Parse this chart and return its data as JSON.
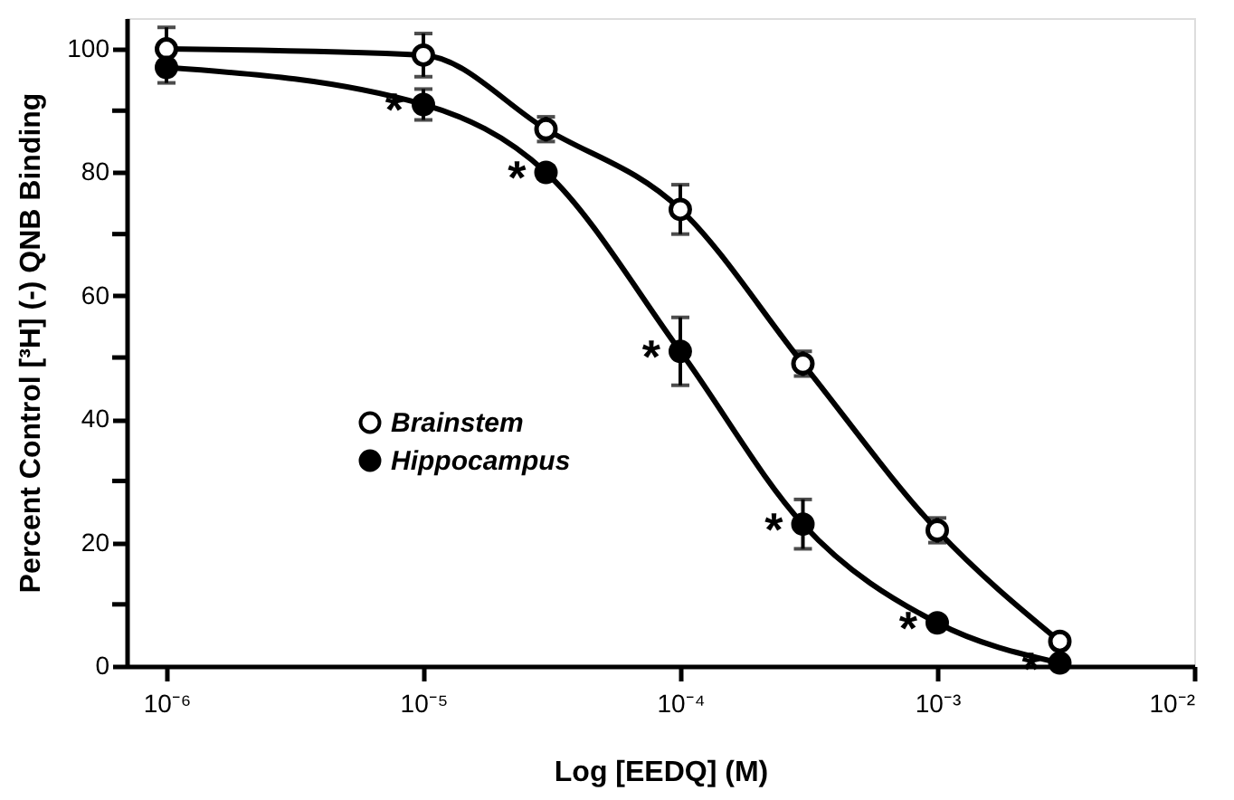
{
  "chart_data": {
    "type": "line",
    "xlabel": "Log [EEDQ] (M)",
    "ylabel": "Percent Control [³H] (-) QNB Binding",
    "x": [
      1e-06,
      1e-05,
      3e-05,
      0.0001,
      0.0003,
      0.001,
      0.003
    ],
    "series": [
      {
        "name": "Brainstem",
        "color": "#000000",
        "values": [
          100,
          99,
          87,
          74,
          49,
          22,
          4
        ],
        "errors": [
          3.5,
          3.5,
          2,
          4,
          2,
          2,
          null
        ]
      },
      {
        "name": "Hippocampus",
        "color": "#000000",
        "values": [
          97,
          91,
          80,
          51,
          23,
          7,
          0.5
        ],
        "errors": [
          2.5,
          2.5,
          1,
          5.5,
          4,
          null,
          null
        ]
      }
    ],
    "annotations": [
      {
        "text": "*",
        "x": 1e-05,
        "y": 91
      },
      {
        "text": "*",
        "x": 3e-05,
        "y": 80
      },
      {
        "text": "*",
        "x": 0.0001,
        "y": 51
      },
      {
        "text": "*",
        "x": 0.0003,
        "y": 23
      },
      {
        "text": "*",
        "x": 0.001,
        "y": 7
      },
      {
        "text": "*",
        "x": 0.003,
        "y": 0.5
      }
    ],
    "log": "x",
    "xlim": [
      7e-07,
      0.01
    ],
    "xticks": [
      {
        "value": 1e-06,
        "label": "10⁻⁶"
      },
      {
        "value": 1e-05,
        "label": "10⁻⁵"
      },
      {
        "value": 0.0001,
        "label": "10⁻⁴"
      },
      {
        "value": 0.001,
        "label": "10⁻³"
      },
      {
        "value": 0.01,
        "label": "10⁻²"
      }
    ],
    "ylim": [
      0,
      105
    ],
    "yticks": [
      0,
      {
        "value": 10,
        "label": null
      },
      20,
      {
        "value": 30,
        "label": null
      },
      40,
      {
        "value": 50,
        "label": null
      },
      60,
      {
        "value": 70,
        "label": null
      },
      80,
      {
        "value": 90,
        "label": null
      },
      100
    ],
    "grid": false,
    "legend": "left",
    "marker": "circle",
    "line_style": "solid"
  }
}
